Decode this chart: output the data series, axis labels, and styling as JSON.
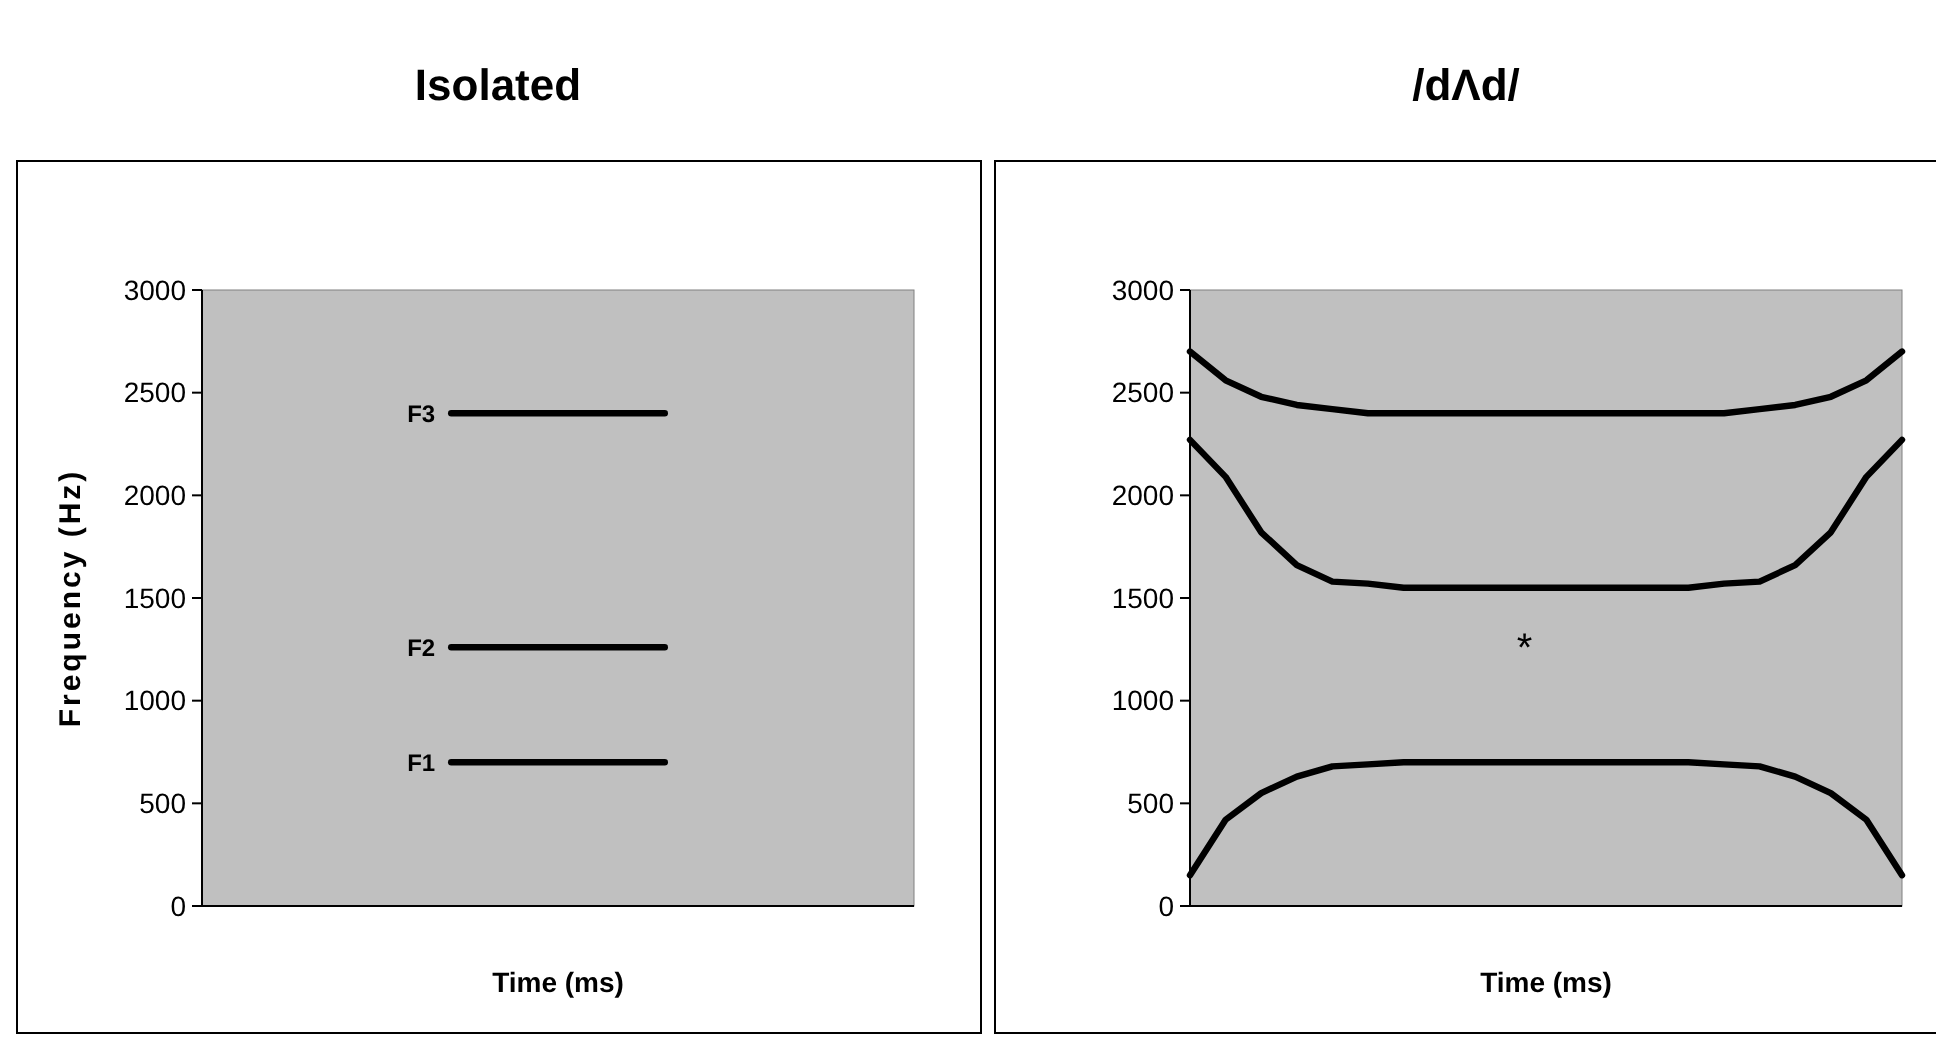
{
  "chart_data": [
    {
      "type": "line",
      "title": "Isolated",
      "xlabel": "Time (ms)",
      "ylabel": "Frequency (Hz)",
      "categories": [
        null,
        null,
        null,
        null,
        null,
        null,
        null,
        null,
        null,
        null
      ],
      "series": [
        {
          "name": "F1",
          "color": "#000000",
          "values": [
            null,
            null,
            null,
            700,
            700,
            700,
            700,
            null,
            null,
            null
          ]
        },
        {
          "name": "F2",
          "color": "#000000",
          "values": [
            null,
            null,
            null,
            1260,
            1260,
            1260,
            1260,
            null,
            null,
            null
          ]
        },
        {
          "name": "F3",
          "color": "#000000",
          "values": [
            null,
            null,
            null,
            2400,
            2400,
            2400,
            2400,
            null,
            null,
            null
          ]
        }
      ],
      "ylim": [
        0,
        3000
      ],
      "yticks": [
        0,
        500,
        1000,
        1500,
        2000,
        2500,
        3000
      ],
      "grid": false,
      "marker": "none",
      "line_style": "solid",
      "tick_labels": "y"
    },
    {
      "type": "line",
      "title": "/dΛd/",
      "xlabel": "Time (ms)",
      "categories": [
        null,
        null,
        null,
        null,
        null,
        null,
        null,
        null,
        null,
        null,
        null,
        null,
        null,
        null,
        null,
        null,
        null,
        null,
        null,
        null,
        null
      ],
      "series": [
        {
          "color": "#000000",
          "values": [
            150,
            420,
            550,
            630,
            680,
            690,
            700,
            700,
            700,
            700,
            700,
            700,
            700,
            700,
            700,
            690,
            680,
            630,
            550,
            420,
            150
          ]
        },
        {
          "color": "#000000",
          "values": [
            2270,
            2090,
            1820,
            1660,
            1580,
            1570,
            1550,
            1550,
            1550,
            1550,
            1550,
            1550,
            1550,
            1550,
            1550,
            1570,
            1580,
            1660,
            1820,
            2090,
            2270
          ]
        },
        {
          "color": "#000000",
          "values": [
            2700,
            2560,
            2480,
            2440,
            2420,
            2400,
            2400,
            2400,
            2400,
            2400,
            2400,
            2400,
            2400,
            2400,
            2400,
            2400,
            2420,
            2440,
            2480,
            2560,
            2700
          ]
        }
      ],
      "annotations": [
        "*"
      ],
      "ylim": [
        0,
        3000
      ],
      "yticks": [
        0,
        500,
        1000,
        1500,
        2000,
        2500,
        3000
      ],
      "grid": false,
      "marker": "none",
      "line_style": "solid",
      "tick_labels": "y"
    }
  ]
}
